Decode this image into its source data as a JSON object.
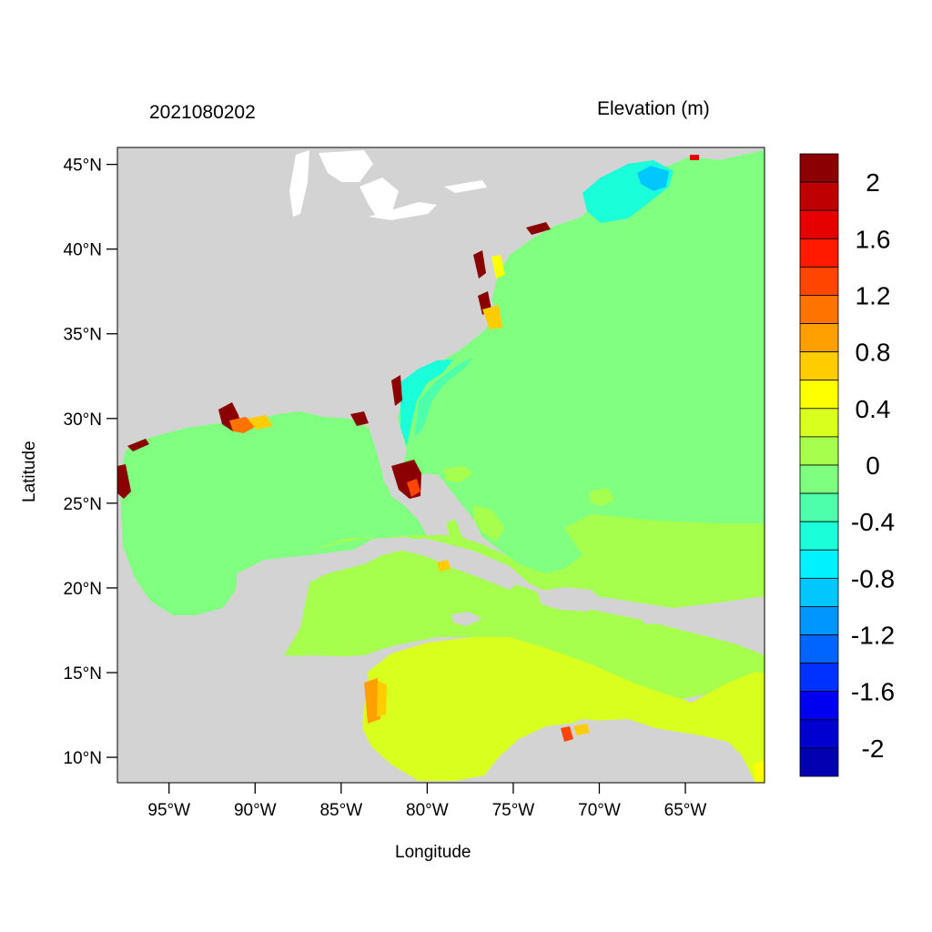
{
  "title_left": "2021080202",
  "title_right": "Elevation (m)",
  "x_axis": {
    "label": "Longitude",
    "ticks": [
      "95°W",
      "90°W",
      "85°W",
      "80°W",
      "75°W",
      "70°W",
      "65°W"
    ],
    "tick_values": [
      -95,
      -90,
      -85,
      -80,
      -75,
      -70,
      -65
    ]
  },
  "y_axis": {
    "label": "Latitude",
    "ticks": [
      "45°N",
      "40°N",
      "35°N",
      "30°N",
      "25°N",
      "20°N",
      "15°N",
      "10°N"
    ],
    "tick_values": [
      45,
      40,
      35,
      30,
      25,
      20,
      15,
      10
    ]
  },
  "map_extent": {
    "lon": [
      -98,
      -60.4
    ],
    "lat": [
      8.5,
      46
    ]
  },
  "colorbar": {
    "labels": [
      "2",
      "1.6",
      "1.2",
      "0.8",
      "0.4",
      "0",
      "-0.4",
      "-0.8",
      "-1.2",
      "-1.6",
      "-2"
    ],
    "colors": [
      "#8b0000",
      "#bf0000",
      "#e60000",
      "#ff1a00",
      "#ff4500",
      "#ff7300",
      "#ffa000",
      "#ffcc00",
      "#ffff00",
      "#d9ff1f",
      "#a6ff4d",
      "#7fff80",
      "#4dffaa",
      "#1affd9",
      "#00f2ff",
      "#00c8ff",
      "#0096ff",
      "#0064ff",
      "#0032ff",
      "#0000f0",
      "#0000d0",
      "#0000b0"
    ]
  },
  "colors": {
    "land": "#d3d3d3",
    "ocean_default": "#80ff80"
  }
}
